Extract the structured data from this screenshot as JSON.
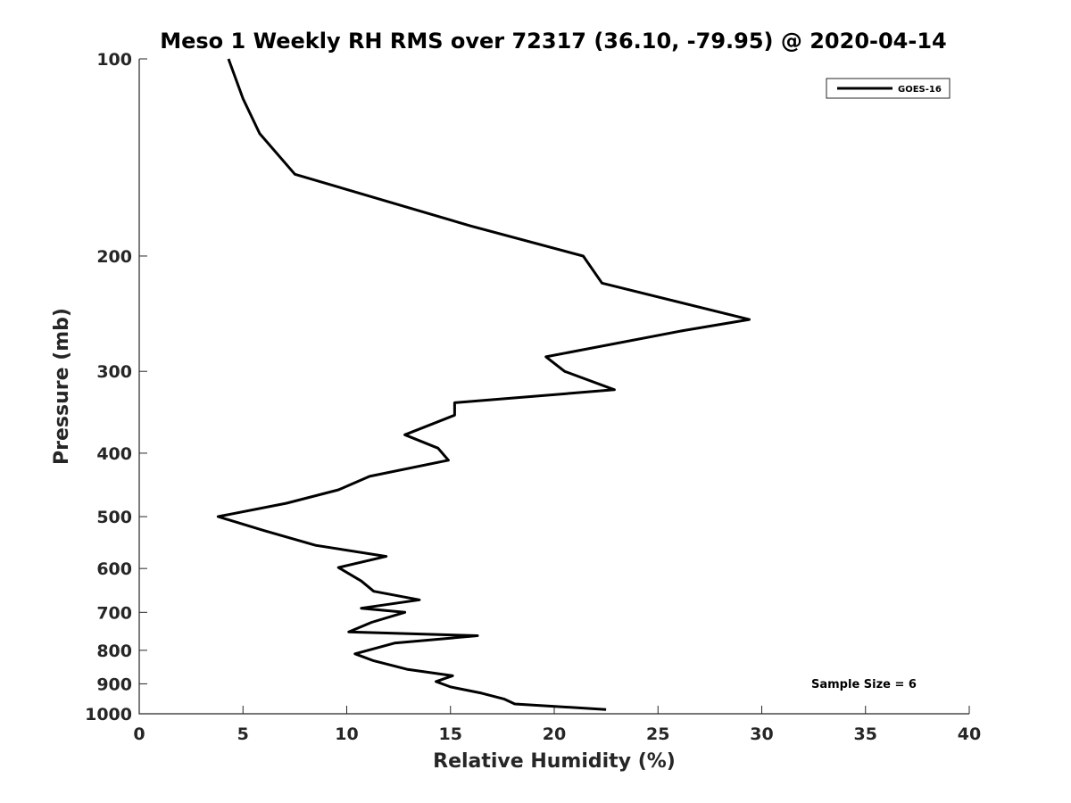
{
  "chart_data": {
    "type": "line",
    "title": "Meso 1 Weekly RH RMS over 72317 (36.10, -79.95) @ 2020-04-14",
    "xlabel": "Relative Humidity (%)",
    "ylabel": "Pressure (mb)",
    "xlim": [
      0,
      40
    ],
    "ylim": [
      100,
      1000
    ],
    "y_scale": "log",
    "y_reversed": true,
    "grid": false,
    "legend_position": "top-right",
    "x_ticks": [
      0,
      5,
      10,
      15,
      20,
      25,
      30,
      35,
      40
    ],
    "y_ticks": [
      100,
      200,
      300,
      400,
      500,
      600,
      700,
      800,
      900,
      1000
    ],
    "annotation": "Sample Size = 6",
    "series": [
      {
        "name": "GOES-16",
        "color": "#000000",
        "points": [
          [
            4.3,
            100
          ],
          [
            5.0,
            115
          ],
          [
            5.8,
            130
          ],
          [
            7.5,
            150
          ],
          [
            16.0,
            180
          ],
          [
            21.4,
            200
          ],
          [
            22.3,
            220
          ],
          [
            29.4,
            250
          ],
          [
            26.2,
            260
          ],
          [
            19.6,
            285
          ],
          [
            20.5,
            300
          ],
          [
            22.9,
            320
          ],
          [
            15.2,
            335
          ],
          [
            15.2,
            350
          ],
          [
            12.8,
            375
          ],
          [
            14.4,
            393
          ],
          [
            14.9,
            410
          ],
          [
            11.1,
            434
          ],
          [
            9.6,
            455
          ],
          [
            7.1,
            477
          ],
          [
            3.8,
            500
          ],
          [
            6.0,
            525
          ],
          [
            8.5,
            553
          ],
          [
            11.9,
            575
          ],
          [
            9.6,
            598
          ],
          [
            10.7,
            627
          ],
          [
            11.3,
            650
          ],
          [
            13.5,
            670
          ],
          [
            10.7,
            690
          ],
          [
            12.8,
            700
          ],
          [
            11.2,
            725
          ],
          [
            10.1,
            750
          ],
          [
            16.3,
            760
          ],
          [
            12.3,
            780
          ],
          [
            10.4,
            810
          ],
          [
            11.3,
            830
          ],
          [
            12.9,
            855
          ],
          [
            15.1,
            875
          ],
          [
            14.3,
            893
          ],
          [
            15.0,
            910
          ],
          [
            16.5,
            930
          ],
          [
            17.6,
            950
          ],
          [
            18.1,
            966
          ],
          [
            22.5,
            985
          ]
        ]
      }
    ]
  }
}
